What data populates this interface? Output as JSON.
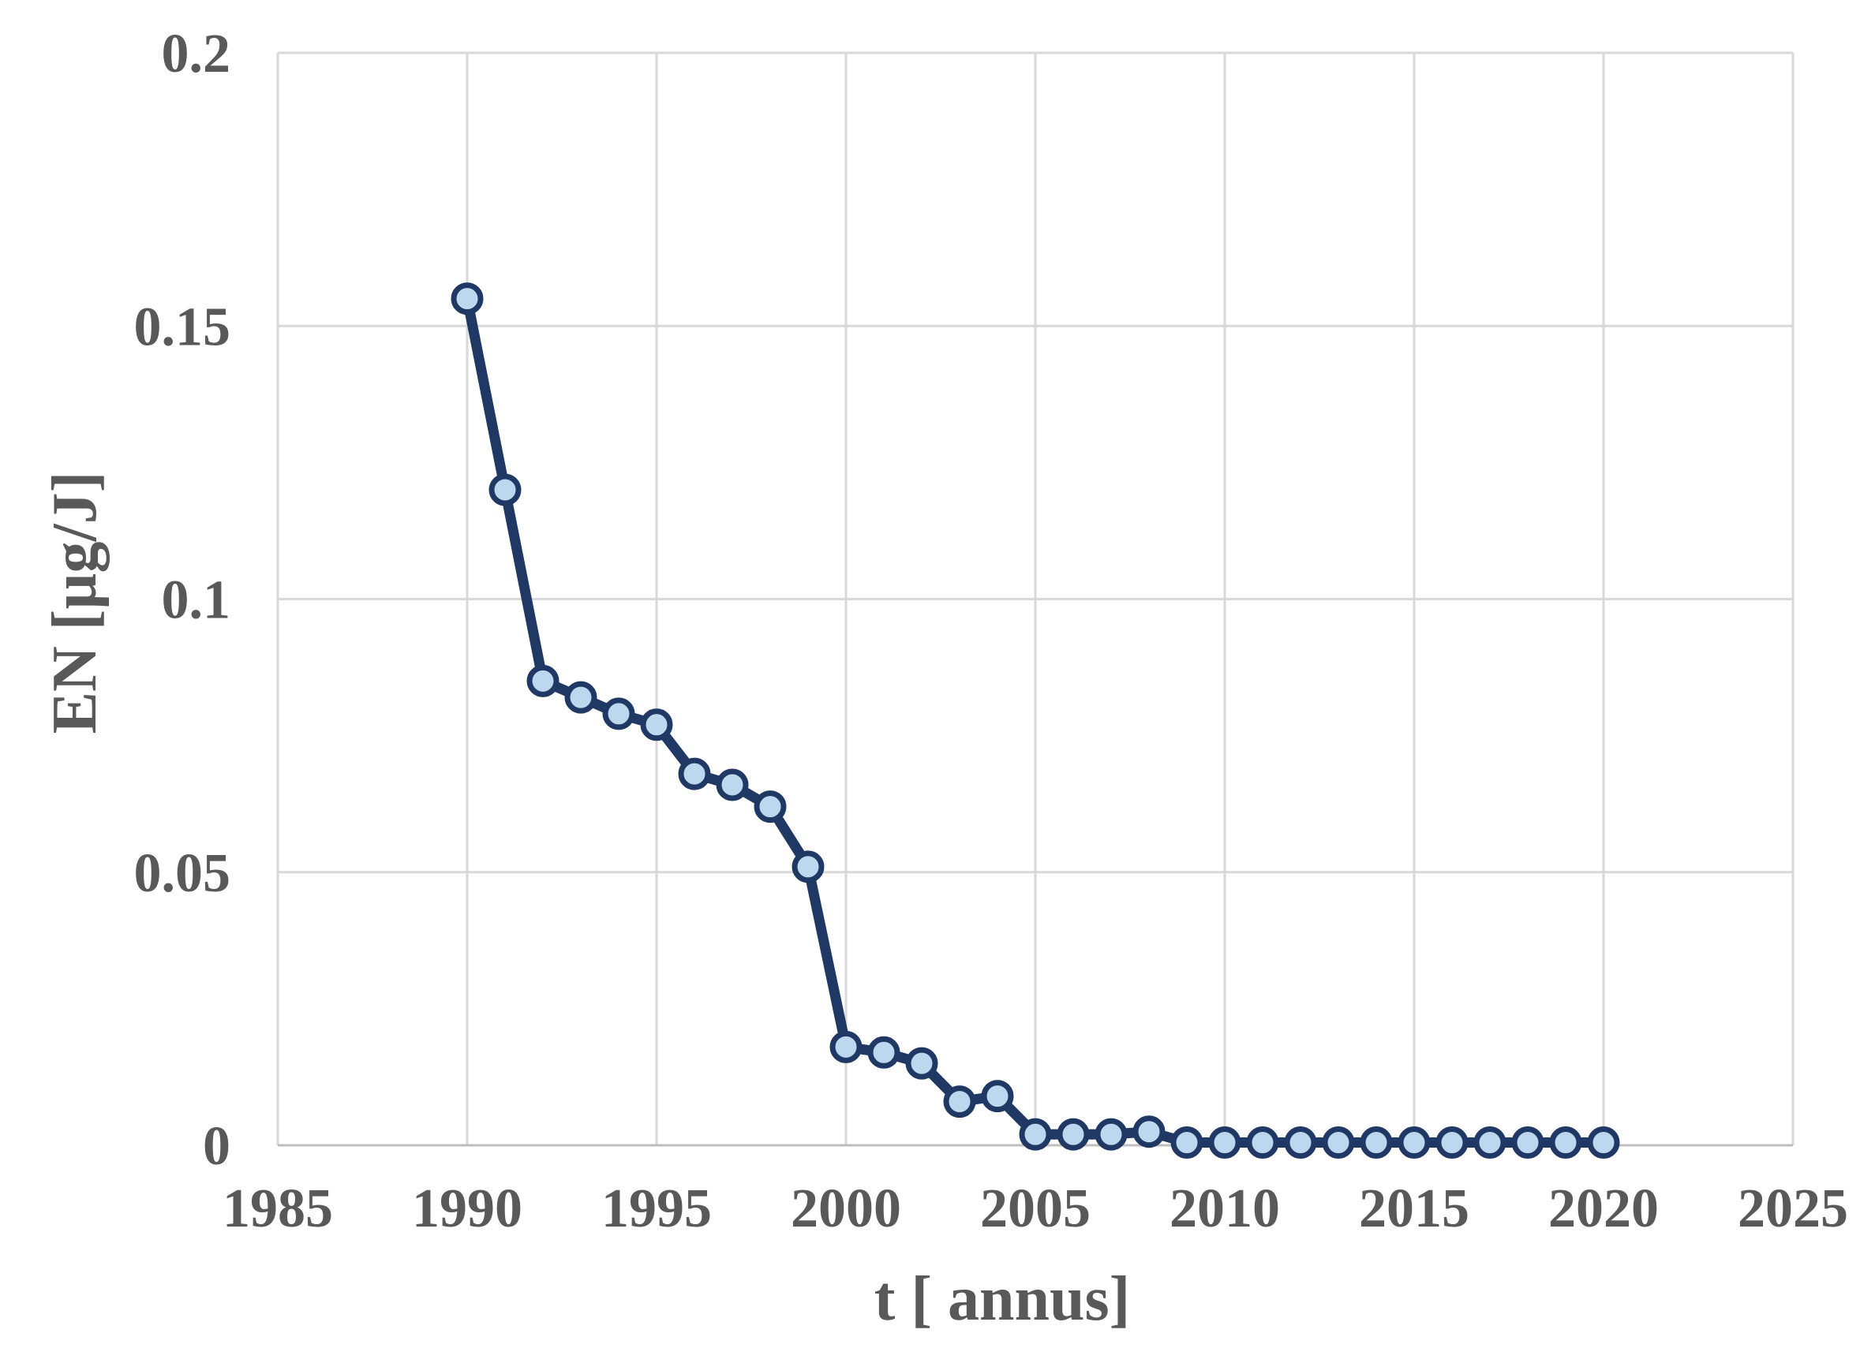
{
  "chart_data": {
    "type": "line",
    "title": "",
    "xlabel": "t [ annus]",
    "ylabel": "EN [µg/J]",
    "x": [
      1990,
      1991,
      1992,
      1993,
      1994,
      1995,
      1996,
      1997,
      1998,
      1999,
      2000,
      2001,
      2002,
      2003,
      2004,
      2005,
      2006,
      2007,
      2008,
      2009,
      2010,
      2011,
      2012,
      2013,
      2014,
      2015,
      2016,
      2017,
      2018,
      2019,
      2020
    ],
    "values": [
      0.155,
      0.12,
      0.085,
      0.082,
      0.079,
      0.077,
      0.068,
      0.066,
      0.062,
      0.051,
      0.018,
      0.017,
      0.015,
      0.008,
      0.009,
      0.002,
      0.002,
      0.002,
      0.0025,
      0.0005,
      0.0005,
      0.0005,
      0.0005,
      0.0005,
      0.0005,
      0.0005,
      0.0005,
      0.0005,
      0.0005,
      0.0005,
      0.0005
    ],
    "xlim": [
      1985,
      2025
    ],
    "ylim": [
      0,
      0.2
    ],
    "x_ticks": [
      1985,
      1990,
      1995,
      2000,
      2005,
      2010,
      2015,
      2020,
      2025
    ],
    "y_ticks": [
      0,
      0.05,
      0.1,
      0.15,
      0.2
    ],
    "y_tick_labels": [
      "0",
      "0.05",
      "0.1",
      "0.15",
      "0.2"
    ],
    "grid": true,
    "legend": "none",
    "marker": "circle",
    "colors": {
      "line": "#1F3864",
      "marker_fill": "#BDD7EE",
      "gridline": "#D9D9D9",
      "axis_line": "#BFBFBF",
      "label_text": "#595959",
      "background": "#FFFFFF"
    }
  }
}
